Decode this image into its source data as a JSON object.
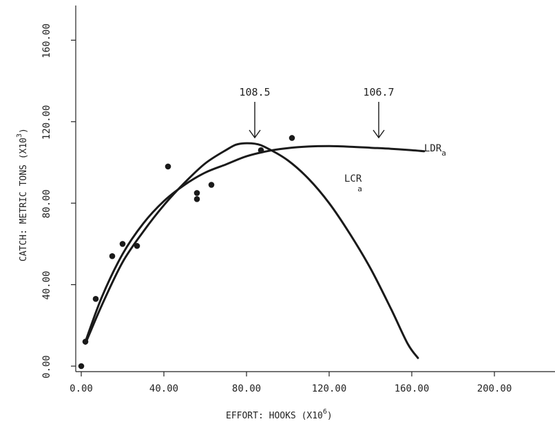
{
  "chart_data": {
    "type": "line",
    "title": "",
    "xlabel": {
      "text": "EFFORT: HOOKS (X10",
      "sup": "6",
      "suffix": ")"
    },
    "ylabel": {
      "text": "CATCH: METRIC TONS (X10",
      "sup": "3",
      "suffix": ")"
    },
    "xlim": [
      0,
      240
    ],
    "ylim": [
      0,
      170
    ],
    "x_ticks": [
      0,
      40,
      80,
      120,
      160,
      200
    ],
    "x_tick_labels": [
      "0.00",
      "40.00",
      "80.00",
      "120.00",
      "160.00",
      "200.00"
    ],
    "y_ticks": [
      0,
      40,
      80,
      120,
      160
    ],
    "y_tick_labels": [
      "0.00",
      "40.00",
      "80.00",
      "120.00",
      "160.00"
    ],
    "grid": false,
    "series": [
      {
        "name": "LDR",
        "sub": "a",
        "x": [
          2,
          10,
          20,
          30,
          40,
          50,
          60,
          70,
          80,
          90,
          100,
          110,
          120,
          130,
          140,
          150,
          160,
          166
        ],
        "y": [
          12,
          34,
          55,
          70,
          81,
          89,
          95,
          99,
          103,
          105.5,
          107,
          107.8,
          108,
          107.7,
          107.2,
          106.7,
          106,
          105.5
        ]
      },
      {
        "name": "LCR",
        "sub": "a",
        "x": [
          2,
          10,
          20,
          30,
          40,
          50,
          60,
          70,
          76,
          84,
          90,
          100,
          110,
          120,
          130,
          140,
          150,
          158,
          163
        ],
        "y": [
          11,
          30,
          51,
          66,
          79,
          90,
          99.5,
          106,
          109,
          109.2,
          107,
          101,
          92,
          80,
          65,
          48,
          28,
          11,
          4
        ]
      }
    ],
    "points": {
      "x": [
        0,
        2,
        7,
        15,
        20,
        27,
        42,
        56,
        56,
        63,
        87,
        102
      ],
      "y": [
        0,
        12,
        33,
        54,
        60,
        59,
        98,
        85,
        82,
        89,
        106,
        112
      ]
    },
    "annotations": [
      {
        "label": "108.5",
        "x": 84,
        "y": 109
      },
      {
        "label": "106.7",
        "x": 144,
        "y": 106.7
      }
    ]
  }
}
